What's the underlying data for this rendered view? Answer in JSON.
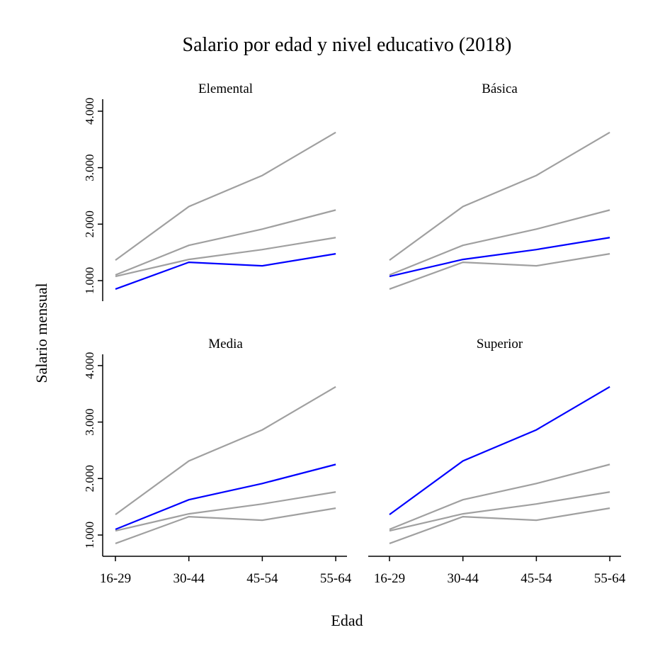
{
  "chart_data": {
    "type": "line",
    "title": "Salario por edad y nivel educativo (2018)",
    "xlabel": "Edad",
    "ylabel": "Salario mensual",
    "categories": [
      "16-29",
      "30-44",
      "45-54",
      "55-64"
    ],
    "yticks": [
      "1.000",
      "2.000",
      "3.000",
      "4.000"
    ],
    "ytick_values": [
      1000,
      2000,
      3000,
      4000
    ],
    "ylim": [
      600,
      4200
    ],
    "grid": false,
    "highlight_color": "#0000ff",
    "background_color": "#a0a0a0",
    "series": [
      {
        "name": "Elemental",
        "values": [
          850,
          1325,
          1262,
          1475
        ]
      },
      {
        "name": "Básica",
        "values": [
          1075,
          1375,
          1550,
          1762
        ]
      },
      {
        "name": "Media",
        "values": [
          1100,
          1625,
          1912,
          2250
        ]
      },
      {
        "name": "Superior",
        "values": [
          1362,
          2312,
          2862,
          3625
        ]
      }
    ]
  }
}
